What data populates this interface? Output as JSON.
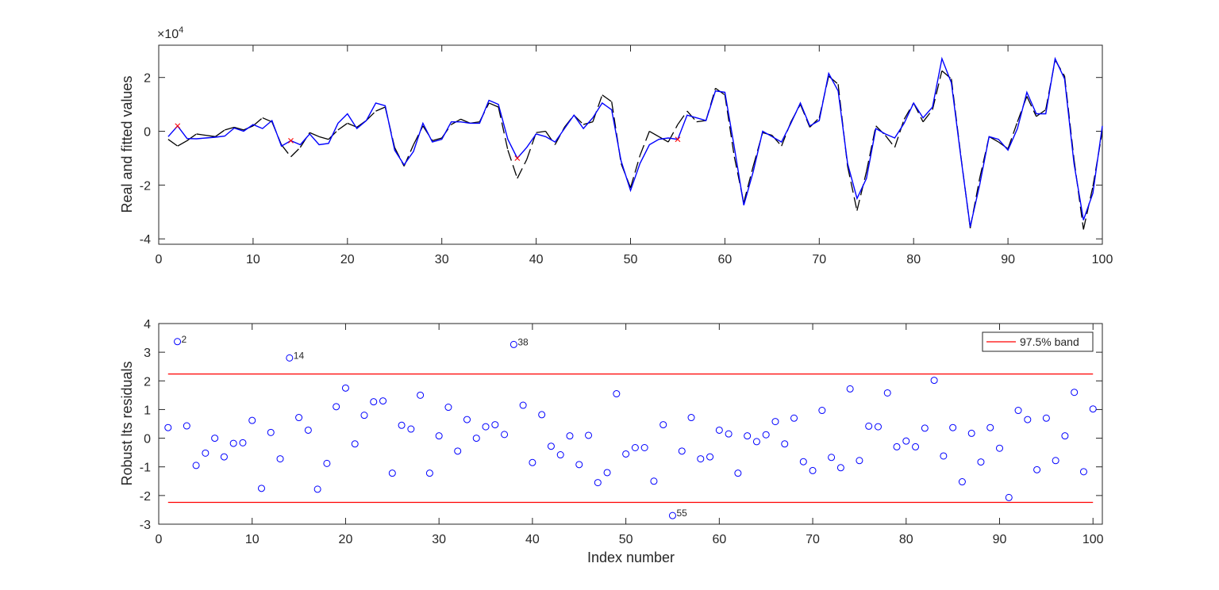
{
  "chart_data": [
    {
      "type": "line",
      "ylabel": "Real and fitted values",
      "xlabel": "",
      "xlim": [
        0,
        100
      ],
      "ylim": [
        -4.2,
        3.2
      ],
      "y_exponent_label": "×10",
      "y_exponent_power": "4",
      "xticks": [
        "0",
        "10",
        "20",
        "30",
        "40",
        "50",
        "60",
        "70",
        "80",
        "90",
        "100"
      ],
      "yticks": [
        "-4",
        "-2",
        "0",
        "2"
      ],
      "xtick_values": [
        0,
        10,
        20,
        30,
        40,
        50,
        60,
        70,
        80,
        90,
        100
      ],
      "ytick_values": [
        -4,
        -2,
        0,
        2
      ],
      "series": [
        {
          "role": "real",
          "color": "#0000ff",
          "x": [
            1,
            2,
            3,
            4,
            5,
            6,
            7,
            8,
            9,
            10,
            11,
            12,
            13,
            14,
            15,
            16,
            17,
            18,
            19,
            20,
            21,
            22,
            23,
            24,
            25,
            26,
            27,
            28,
            29,
            30,
            31,
            32,
            33,
            34,
            35,
            36,
            37,
            38,
            39,
            40,
            41,
            42,
            43,
            44,
            45,
            46,
            47,
            48,
            49,
            50,
            51,
            52,
            53,
            54,
            55,
            56,
            57,
            58,
            59,
            60,
            61,
            62,
            63,
            64,
            65,
            66,
            67,
            68,
            69,
            70,
            71,
            72,
            73,
            74,
            75,
            76,
            77,
            78,
            79,
            80,
            81,
            82,
            83,
            84,
            85,
            86,
            87,
            88,
            89,
            90,
            91,
            92,
            93,
            94,
            95,
            96,
            97,
            98,
            99,
            100
          ],
          "values": [
            -0.2,
            0.2,
            -0.27,
            -0.28,
            -0.25,
            -0.22,
            -0.18,
            0.12,
            0.0,
            0.25,
            0.1,
            0.4,
            -0.55,
            -0.35,
            -0.5,
            -0.1,
            -0.5,
            -0.45,
            0.3,
            0.65,
            0.1,
            0.4,
            1.05,
            0.95,
            -0.7,
            -1.25,
            -0.75,
            0.3,
            -0.4,
            -0.3,
            0.35,
            0.35,
            0.3,
            0.3,
            1.15,
            1.0,
            -0.3,
            -1.0,
            -0.6,
            -0.1,
            -0.2,
            -0.4,
            0.1,
            0.6,
            0.1,
            0.5,
            1.05,
            0.8,
            -1.1,
            -2.2,
            -1.2,
            -0.5,
            -0.3,
            -0.25,
            -0.3,
            0.6,
            0.5,
            0.4,
            1.5,
            1.45,
            -0.6,
            -2.75,
            -1.5,
            0.0,
            -0.2,
            -0.4,
            0.3,
            1.05,
            0.2,
            0.4,
            2.15,
            1.5,
            -1.2,
            -2.5,
            -1.75,
            0.1,
            -0.1,
            -0.25,
            0.3,
            1.05,
            0.5,
            0.9,
            2.7,
            1.8,
            -0.95,
            -3.55,
            -2.0,
            -0.2,
            -0.3,
            -0.7,
            0.1,
            1.45,
            0.65,
            0.65,
            2.7,
            1.95,
            -1.2,
            -3.3,
            -2.3,
            0.2
          ]
        },
        {
          "role": "fitted",
          "color": "#000000",
          "x": [
            1,
            2,
            3,
            4,
            5,
            6,
            7,
            8,
            9,
            10,
            11,
            12,
            13,
            14,
            15,
            16,
            17,
            18,
            19,
            20,
            21,
            22,
            23,
            24,
            25,
            26,
            27,
            28,
            29,
            30,
            31,
            32,
            33,
            34,
            35,
            36,
            37,
            38,
            39,
            40,
            41,
            42,
            43,
            44,
            45,
            46,
            47,
            48,
            49,
            50,
            51,
            52,
            53,
            54,
            55,
            56,
            57,
            58,
            59,
            60,
            61,
            62,
            63,
            64,
            65,
            66,
            67,
            68,
            69,
            70,
            71,
            72,
            73,
            74,
            75,
            76,
            77,
            78,
            79,
            80,
            81,
            82,
            83,
            84,
            85,
            86,
            87,
            88,
            89,
            90,
            91,
            92,
            93,
            94,
            95,
            96,
            97,
            98,
            99,
            100
          ],
          "values": [
            -0.3,
            -0.55,
            -0.35,
            -0.1,
            -0.15,
            -0.2,
            0.05,
            0.15,
            0.05,
            0.2,
            0.5,
            0.35,
            -0.5,
            -0.95,
            -0.6,
            -0.05,
            -0.2,
            -0.3,
            0.05,
            0.3,
            0.15,
            0.4,
            0.75,
            0.9,
            -0.6,
            -1.3,
            -0.5,
            0.2,
            -0.35,
            -0.25,
            0.25,
            0.45,
            0.3,
            0.35,
            1.05,
            0.9,
            -0.7,
            -1.75,
            -1.05,
            -0.05,
            0.0,
            -0.5,
            0.15,
            0.6,
            0.25,
            0.35,
            1.35,
            1.1,
            -1.2,
            -2.1,
            -0.9,
            0.0,
            -0.2,
            -0.4,
            0.25,
            0.75,
            0.35,
            0.4,
            1.6,
            1.35,
            -0.95,
            -2.65,
            -1.3,
            -0.05,
            -0.15,
            -0.55,
            0.35,
            1.0,
            0.15,
            0.5,
            2.05,
            1.75,
            -1.3,
            -2.95,
            -1.5,
            0.2,
            -0.15,
            -0.6,
            0.45,
            1.05,
            0.35,
            0.8,
            2.25,
            1.95,
            -0.9,
            -3.6,
            -1.75,
            -0.2,
            -0.4,
            -0.65,
            0.35,
            1.3,
            0.55,
            0.8,
            2.65,
            2.05,
            -1.05,
            -3.65,
            -2.05,
            0.0
          ]
        }
      ],
      "outlier_markers": [
        {
          "x": 2,
          "value": 0.2,
          "color": "#ff0000"
        },
        {
          "x": 14,
          "value": -0.35,
          "color": "#ff0000"
        },
        {
          "x": 38,
          "value": -1.0,
          "color": "#ff0000"
        },
        {
          "x": 55,
          "value": -0.3,
          "color": "#ff0000"
        }
      ]
    },
    {
      "type": "scatter",
      "ylabel": "Robust lts residuals",
      "xlabel": "Index number",
      "xlim": [
        0,
        101
      ],
      "ylim": [
        -3,
        4
      ],
      "xticks": [
        "0",
        "10",
        "20",
        "30",
        "40",
        "50",
        "60",
        "70",
        "80",
        "90",
        "100"
      ],
      "yticks": [
        "-3",
        "-2",
        "-1",
        "0",
        "1",
        "2",
        "3",
        "4"
      ],
      "xtick_values": [
        0,
        10,
        20,
        30,
        40,
        50,
        60,
        70,
        80,
        90,
        100
      ],
      "ytick_values": [
        -3,
        -2,
        -1,
        0,
        1,
        2,
        3,
        4
      ],
      "marker_color": "#0000ff",
      "band_color": "#ff0000",
      "band": [
        -2.24,
        2.24
      ],
      "legend": {
        "label": "97.5% band",
        "position": "top-right"
      },
      "x": [
        1,
        2,
        3,
        4,
        5,
        6,
        7,
        8,
        9,
        10,
        11,
        12,
        13,
        14,
        15,
        16,
        17,
        18,
        19,
        20,
        21,
        22,
        23,
        24,
        25,
        26,
        27,
        28,
        29,
        30,
        31,
        32,
        33,
        34,
        35,
        36,
        37,
        38,
        39,
        40,
        41,
        42,
        43,
        44,
        45,
        46,
        47,
        48,
        49,
        50,
        51,
        52,
        53,
        54,
        55,
        56,
        57,
        58,
        59,
        60,
        61,
        62,
        63,
        64,
        65,
        66,
        67,
        68,
        69,
        70,
        71,
        72,
        73,
        74,
        75,
        76,
        77,
        78,
        79,
        80,
        81,
        82,
        83,
        84,
        85,
        86,
        87,
        88,
        89,
        90,
        91,
        92,
        93,
        94,
        95,
        96,
        97,
        98,
        99,
        100
      ],
      "values": [
        0.37,
        3.37,
        0.43,
        -0.95,
        -0.52,
        0.0,
        -0.65,
        -0.18,
        -0.16,
        0.62,
        -1.75,
        0.2,
        -0.72,
        2.8,
        0.72,
        0.28,
        -1.78,
        -0.88,
        1.1,
        1.75,
        -0.2,
        0.8,
        1.27,
        1.3,
        -1.22,
        0.45,
        0.32,
        1.5,
        -1.22,
        0.08,
        1.08,
        -0.45,
        0.65,
        0.0,
        0.4,
        0.47,
        0.13,
        3.27,
        1.15,
        -0.85,
        0.82,
        -0.28,
        -0.58,
        0.08,
        -0.92,
        0.1,
        -1.55,
        -1.2,
        1.55,
        -0.55,
        -0.33,
        -0.33,
        -1.5,
        0.47,
        -2.7,
        -0.45,
        0.72,
        -0.72,
        -0.65,
        0.28,
        0.15,
        -1.22,
        0.08,
        -0.12,
        0.12,
        0.58,
        -0.2,
        0.7,
        -0.82,
        -1.13,
        0.97,
        -0.67,
        -1.03,
        1.72,
        -0.78,
        0.42,
        0.4,
        1.58,
        -0.3,
        -0.1,
        -0.3,
        0.35,
        2.02,
        -0.62,
        0.37,
        -1.52,
        0.17,
        -0.83,
        0.37,
        -0.35,
        -2.07,
        0.97,
        0.65,
        -1.1,
        0.7,
        -0.78,
        0.08,
        1.6,
        -1.17,
        1.02
      ],
      "point_labels": [
        {
          "x": 2,
          "text": "2"
        },
        {
          "x": 14,
          "text": "14"
        },
        {
          "x": 38,
          "text": "38"
        },
        {
          "x": 55,
          "text": "55"
        }
      ]
    }
  ]
}
